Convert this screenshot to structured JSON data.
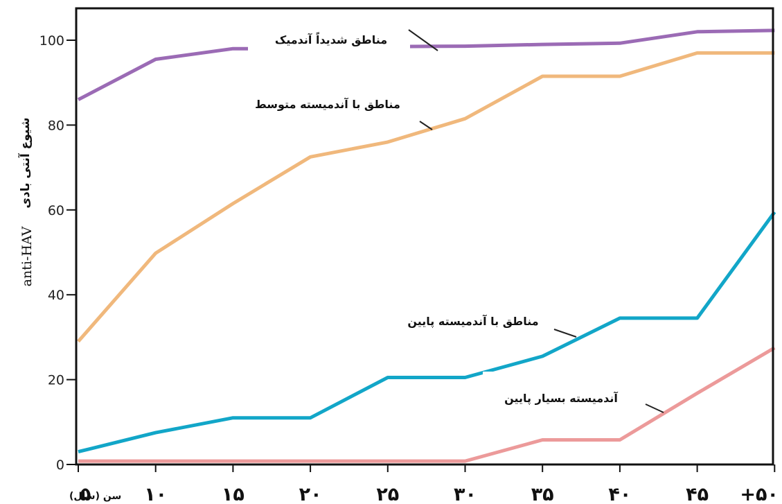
{
  "chart_data": {
    "type": "line",
    "categories": [
      "5",
      "10",
      "15",
      "20",
      "25",
      "30",
      "35",
      "40",
      "45",
      "+50"
    ],
    "x_tick_labels": [
      "۵",
      "۱۰",
      "۱۵",
      "۲۰",
      "۲۵",
      "۳۰",
      "۳۵",
      "۴۰",
      "۴۵",
      "+۵۰"
    ],
    "x_unit_label": "سن (سال)",
    "ylabel_en": "anti-HAV",
    "ylabel_fa": "شیوع آنتی بادی",
    "ylim": [
      0,
      105
    ],
    "yticks": [
      0,
      20,
      40,
      60,
      80,
      100
    ],
    "grid": false,
    "series": [
      {
        "name": "مناطق شدیداً آندمیک",
        "color": "#9b6bb5",
        "values": [
          86,
          95.5,
          98,
          98,
          98.5,
          98.6,
          99,
          99.3,
          102,
          102.3
        ]
      },
      {
        "name": "مناطق با آندمیسته متوسط",
        "color": "#f0b87c",
        "values": [
          29,
          49.8,
          61.5,
          72.5,
          76,
          81.5,
          91.5,
          91.5,
          97,
          97
        ]
      },
      {
        "name": "مناطق با آندمیسته پایین",
        "color": "#12a6c8",
        "values": [
          3,
          7.5,
          11,
          11,
          20.5,
          20.5,
          25.5,
          34.5,
          34.5,
          59.5
        ]
      },
      {
        "name": "آندمیسته بسیار پایین",
        "color": "#ec9a9a",
        "values": [
          0.8,
          0.8,
          0.8,
          0.8,
          0.8,
          0.8,
          5.8,
          5.8,
          16.8,
          27.5
        ]
      }
    ]
  }
}
